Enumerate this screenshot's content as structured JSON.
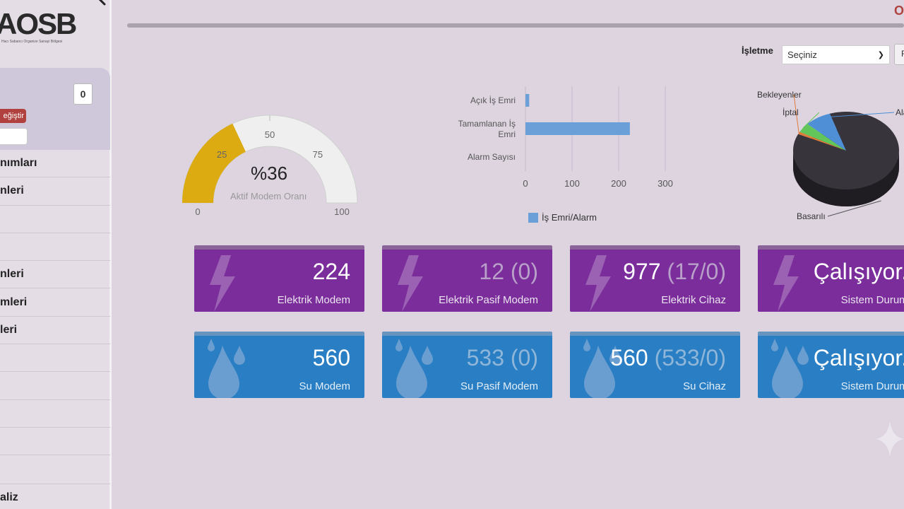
{
  "logo": {
    "text": "AOSB",
    "subtitle": "Hacı Sabancı Organize Sanayi Bölgesi"
  },
  "sidebar": {
    "badge_count": "0",
    "change_button": "eğiştir",
    "menu": [
      "nımları",
      "nleri",
      "",
      "",
      "nleri",
      "mleri",
      "leri",
      "",
      "",
      "",
      ""
    ],
    "last_item": "aliz"
  },
  "header": {
    "top_link": "O"
  },
  "filters": {
    "label": "İşletme",
    "selected": "Seçiniz",
    "button": "F"
  },
  "gauge": {
    "value_text": "%36",
    "label": "Aktif Modem Oranı",
    "value": 36,
    "min_label": "0",
    "max_label": "100",
    "tick_labels": [
      "25",
      "50",
      "75"
    ],
    "fill_color": "#dcaa11",
    "track_color": "#efefef"
  },
  "chart_data": [
    {
      "type": "bar",
      "orientation": "horizontal",
      "categories": [
        "Açık İş Emri",
        "Tamamlanan İş Emri",
        "Alarm Sayısı"
      ],
      "category_lines": [
        [
          "Açık İş Emri"
        ],
        [
          "Tamamlanan İş",
          "Emri"
        ],
        [
          "Alarm Sayısı"
        ]
      ],
      "series": [
        {
          "name": "İş Emri/Alarm",
          "values": [
            8,
            224,
            0
          ],
          "color": "#6a9fd8"
        }
      ],
      "xlim": [
        0,
        300
      ],
      "x_ticks": [
        "0",
        "100",
        "200",
        "300"
      ],
      "grid": true,
      "legend": "bottom"
    },
    {
      "type": "pie",
      "style": "3d",
      "slices": [
        {
          "label": "Basarılı",
          "value": 87,
          "color": "#38343c"
        },
        {
          "label": "Bekleyenler",
          "value": 1,
          "color": "#e07b39"
        },
        {
          "label": "İptal",
          "value": 4,
          "color": "#63c65a"
        },
        {
          "label": "Alarm",
          "value": 8,
          "color": "#4e8fd6"
        }
      ],
      "visible_labels": {
        "Basarılı": "Basarılı",
        "Bekleyenler": "Bekleyenler",
        "İptal": "İptal",
        "Alarm": "Ala"
      }
    }
  ],
  "tiles_electric": [
    {
      "value": "224",
      "extra": "",
      "label": "Elektrik Modem",
      "muted": false
    },
    {
      "value": "12 (0)",
      "extra": "",
      "label": "Elektrik Pasif Modem",
      "muted": true
    },
    {
      "value": "977",
      "extra": "(17/0)",
      "label": "Elektrik Cihaz",
      "muted": false
    },
    {
      "value": "Çalışıyor..",
      "extra": "",
      "label": "Sistem Durumu",
      "muted": false
    }
  ],
  "tiles_water": [
    {
      "value": "560",
      "extra": "",
      "label": "Su Modem",
      "muted": false
    },
    {
      "value": "533 (0)",
      "extra": "",
      "label": "Su Pasif Modem",
      "muted": true
    },
    {
      "value": "560",
      "extra": "(533/0)",
      "label": "Su Cihaz",
      "muted": false
    },
    {
      "value": "Çalışıyor..",
      "extra": "",
      "label": "Sistem Durumu",
      "muted": false
    }
  ]
}
